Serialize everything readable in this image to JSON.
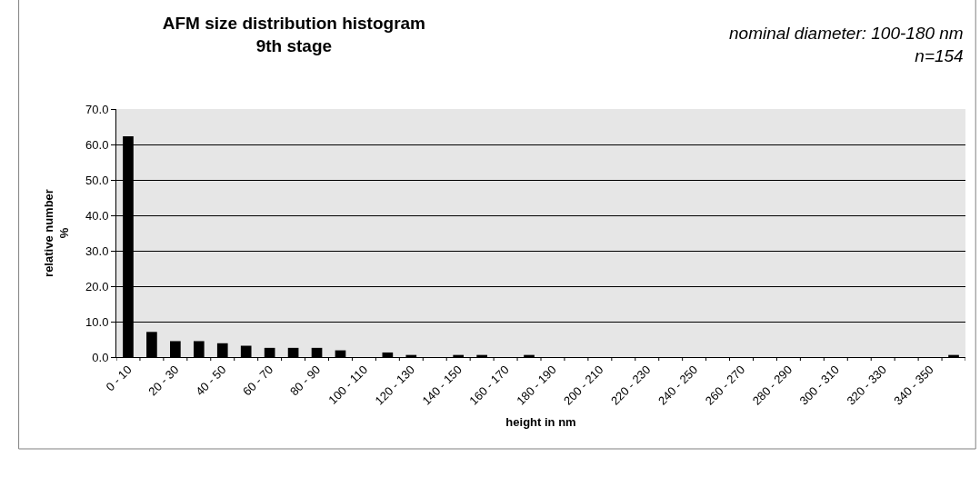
{
  "chart_data": {
    "type": "bar",
    "title": "AFM size distribution histogram\n9th stage",
    "annotations": [
      "nominal diameter: 100-180 nm\nn=154"
    ],
    "xlabel": "height in nm",
    "ylabel": "relative number\n%",
    "categories": [
      "0 - 10",
      null,
      "20 - 30",
      null,
      "40 - 50",
      null,
      "60 - 70",
      null,
      "80 - 90",
      null,
      "100 - 110",
      null,
      "120 - 130",
      null,
      "140 - 150",
      null,
      "160 - 170",
      null,
      "180 - 190",
      null,
      "200 - 210",
      null,
      "220 - 230",
      null,
      "240 - 250",
      null,
      "260 - 270",
      null,
      "280 - 290",
      null,
      "300 - 310",
      null,
      "320 - 330",
      null,
      "340 - 350",
      null
    ],
    "values": [
      62.3,
      7.1,
      4.5,
      4.5,
      3.9,
      3.2,
      2.6,
      2.6,
      2.6,
      1.9,
      0,
      1.3,
      0.6,
      0,
      0.6,
      0.6,
      0,
      0.6,
      0,
      0,
      0,
      0,
      0,
      0,
      0,
      0,
      0,
      0,
      0,
      0,
      0,
      0,
      0,
      0,
      0,
      0.6
    ],
    "color": "#000000",
    "ylim": [
      0,
      70
    ],
    "yticks": [
      {
        "value": 0,
        "label": "0.0"
      },
      {
        "value": 10,
        "label": "10.0"
      },
      {
        "value": 20,
        "label": "20.0"
      },
      {
        "value": 30,
        "label": "30.0"
      },
      {
        "value": 40,
        "label": "40.0"
      },
      {
        "value": 50,
        "label": "50.0"
      },
      {
        "value": 60,
        "label": "60.0"
      },
      {
        "value": 70,
        "label": "70.0"
      }
    ],
    "grid": "y"
  }
}
